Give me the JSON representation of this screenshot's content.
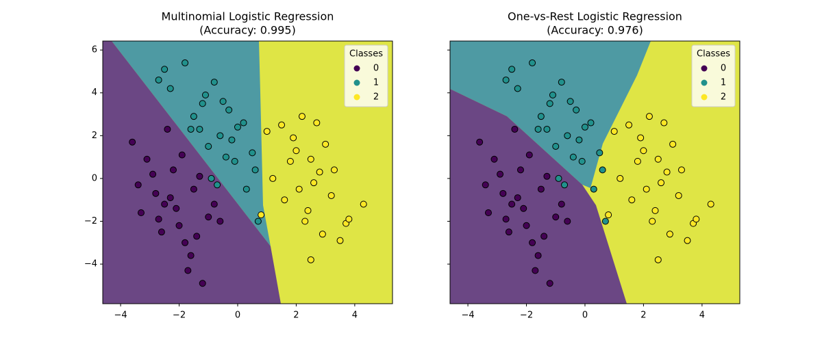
{
  "chart_data": [
    {
      "type": "scatter",
      "title": "Multinomial Logistic Regression",
      "subtitle": "(Accuracy: 0.995)",
      "xlim": [
        -4.61,
        5.29
      ],
      "ylim": [
        -5.85,
        6.42
      ],
      "xticks": [
        {
          "value": -4,
          "label": "−4"
        },
        {
          "value": -2,
          "label": "−2"
        },
        0,
        2,
        4
      ],
      "yticks": [
        {
          "value": -4,
          "label": "−4"
        },
        {
          "value": -2,
          "label": "−2"
        },
        0,
        2,
        4,
        6
      ],
      "legend_title": "Classes",
      "legend": "upper right",
      "series": [
        {
          "name": "0",
          "color": "#440154",
          "x": [
            -3.6,
            -2.4,
            -1.2,
            -1.7,
            -2.8,
            -3.1,
            -2.5,
            -2.0,
            -1.5,
            -1.0,
            -2.2,
            -1.8,
            -3.3,
            -2.6,
            -1.3,
            -0.8,
            -2.9,
            -2.1,
            -1.6,
            -0.6,
            -3.4,
            -2.3,
            -1.4,
            -1.9,
            -2.7
          ],
          "values": [
            1.7,
            2.3,
            -4.9,
            -4.3,
            -0.7,
            0.9,
            -1.2,
            -2.2,
            -0.5,
            -1.8,
            0.4,
            -3.0,
            -1.6,
            -2.5,
            0.1,
            -1.2,
            0.2,
            -1.4,
            -3.6,
            -2.0,
            -0.3,
            -0.9,
            -2.7,
            1.1,
            -1.9
          ]
        },
        {
          "name": "1",
          "color": "#21918c",
          "x": [
            -2.5,
            -1.8,
            -2.7,
            -2.3,
            -1.2,
            -0.8,
            -0.3,
            0.2,
            -1.5,
            -0.6,
            -1.0,
            0.5,
            -0.1,
            -1.3,
            -0.9,
            0.3,
            -0.4,
            -1.1,
            0.7,
            -0.2,
            -1.6,
            0.0,
            -0.7,
            -0.5,
            0.6
          ],
          "values": [
            5.1,
            5.4,
            4.6,
            4.2,
            3.5,
            4.5,
            3.2,
            2.6,
            2.9,
            2.0,
            1.5,
            1.2,
            0.8,
            2.3,
            0.0,
            -0.5,
            1.0,
            3.9,
            -2.0,
            1.8,
            2.3,
            2.4,
            -0.3,
            3.6,
            0.4
          ]
        },
        {
          "name": "2",
          "color": "#fde725",
          "x": [
            4.3,
            2.5,
            3.7,
            1.0,
            0.8,
            1.5,
            2.0,
            2.2,
            2.8,
            3.2,
            2.6,
            1.8,
            3.5,
            2.4,
            3.0,
            1.6,
            2.9,
            2.1,
            3.3,
            1.2,
            2.7,
            2.3,
            3.8,
            1.9,
            2.5
          ],
          "values": [
            -1.2,
            -3.8,
            -2.1,
            2.2,
            -1.7,
            2.5,
            1.3,
            2.9,
            0.3,
            -0.8,
            -0.2,
            0.8,
            -2.9,
            -1.5,
            1.6,
            -1.0,
            -2.6,
            -0.5,
            0.4,
            0.0,
            2.6,
            -2.0,
            -1.9,
            1.9,
            0.9
          ]
        }
      ]
    },
    {
      "type": "scatter",
      "title": "One-vs-Rest Logistic Regression",
      "subtitle": "(Accuracy: 0.976)",
      "xlim": [
        -4.61,
        5.29
      ],
      "ylim": [
        -5.85,
        6.42
      ],
      "xticks": [
        {
          "value": -4,
          "label": "−4"
        },
        {
          "value": -2,
          "label": "−2"
        },
        0,
        2,
        4
      ],
      "yticks": [
        -4,
        -2,
        0,
        2,
        4,
        6
      ],
      "legend_title": "Classes",
      "legend": "upper right",
      "series": [
        {
          "name": "0",
          "color": "#440154",
          "x": [
            -3.6,
            -2.4,
            -1.2,
            -1.7,
            -2.8,
            -3.1,
            -2.5,
            -2.0,
            -1.5,
            -1.0,
            -2.2,
            -1.8,
            -3.3,
            -2.6,
            -1.3,
            -0.8,
            -2.9,
            -2.1,
            -1.6,
            -0.6,
            -3.4,
            -2.3,
            -1.4,
            -1.9,
            -2.7
          ],
          "values": [
            1.7,
            2.3,
            -4.9,
            -4.3,
            -0.7,
            0.9,
            -1.2,
            -2.2,
            -0.5,
            -1.8,
            0.4,
            -3.0,
            -1.6,
            -2.5,
            0.1,
            -1.2,
            0.2,
            -1.4,
            -3.6,
            -2.0,
            -0.3,
            -0.9,
            -2.7,
            1.1,
            -1.9
          ]
        },
        {
          "name": "1",
          "color": "#21918c",
          "x": [
            -2.5,
            -1.8,
            -2.7,
            -2.3,
            -1.2,
            -0.8,
            -0.3,
            0.2,
            -1.5,
            -0.6,
            -1.0,
            0.5,
            -0.1,
            -1.3,
            -0.9,
            0.3,
            -0.4,
            -1.1,
            0.7,
            -0.2,
            -1.6,
            0.0,
            -0.7,
            -0.5,
            0.6
          ],
          "values": [
            5.1,
            5.4,
            4.6,
            4.2,
            3.5,
            4.5,
            3.2,
            2.6,
            2.9,
            2.0,
            1.5,
            1.2,
            0.8,
            2.3,
            0.0,
            -0.5,
            1.0,
            3.9,
            -2.0,
            1.8,
            2.3,
            2.4,
            -0.3,
            3.6,
            0.4
          ]
        },
        {
          "name": "2",
          "color": "#fde725",
          "x": [
            4.3,
            2.5,
            3.7,
            1.0,
            0.8,
            1.5,
            2.0,
            2.2,
            2.8,
            3.2,
            2.6,
            1.8,
            3.5,
            2.4,
            3.0,
            1.6,
            2.9,
            2.1,
            3.3,
            1.2,
            2.7,
            2.3,
            3.8,
            1.9,
            2.5
          ],
          "values": [
            -1.2,
            -3.8,
            -2.1,
            2.2,
            -1.7,
            2.5,
            1.3,
            2.9,
            0.3,
            -0.8,
            -0.2,
            0.8,
            -2.9,
            -1.5,
            1.6,
            -1.0,
            -2.6,
            -0.5,
            0.4,
            0.0,
            2.6,
            -2.0,
            -1.9,
            1.9,
            0.9
          ]
        }
      ]
    }
  ]
}
